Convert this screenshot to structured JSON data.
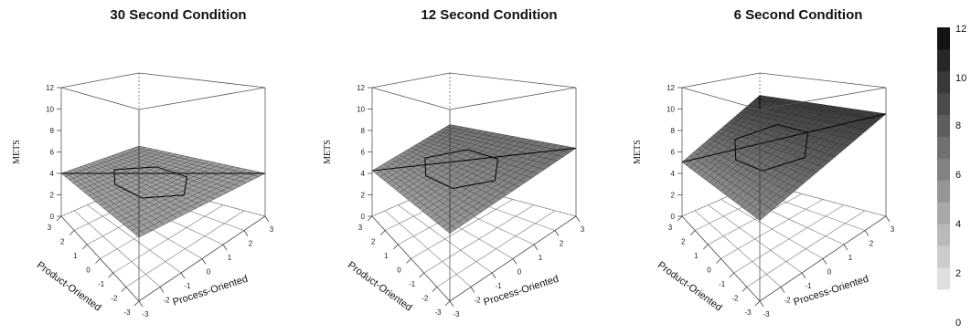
{
  "chart_data": [
    {
      "type": "surface",
      "title": "30 Second Condition",
      "xlabel": "Process-Oriented",
      "ylabel": "Product-Oriented",
      "zlabel": "METS",
      "xlim": [
        -3,
        3
      ],
      "ylim": [
        -3,
        3
      ],
      "zlim": [
        0,
        12
      ],
      "x_ticks": [
        "-3",
        "-2",
        "-1",
        "0",
        "1",
        "2",
        "3"
      ],
      "y_ticks": [
        "-3",
        "-2",
        "-1",
        "0",
        "1",
        "2",
        "3"
      ],
      "z_ticks": [
        "0",
        "2",
        "4",
        "6",
        "8",
        "10",
        "12"
      ],
      "plane": {
        "intercept": 4.0,
        "slope_process": 0.0,
        "slope_product": 0.0
      }
    },
    {
      "type": "surface",
      "title": "12 Second Condition",
      "xlabel": "Process-Oriented",
      "ylabel": "Product-Oriented",
      "zlabel": "METS",
      "xlim": [
        -3,
        3
      ],
      "ylim": [
        -3,
        3
      ],
      "zlim": [
        0,
        12
      ],
      "x_ticks": [
        "-3",
        "-2",
        "-1",
        "0",
        "1",
        "2",
        "3"
      ],
      "y_ticks": [
        "-3",
        "-2",
        "-1",
        "0",
        "1",
        "2",
        "3"
      ],
      "z_ticks": [
        "0",
        "2",
        "4",
        "6",
        "8",
        "10",
        "12"
      ],
      "plane": {
        "intercept": 5.3,
        "slope_process": 0.35,
        "slope_product": 0.0
      }
    },
    {
      "type": "surface",
      "title": "6 Second Condition",
      "xlabel": "Process-Oriented",
      "ylabel": "Product-Oriented",
      "zlabel": "METS",
      "xlim": [
        -3,
        3
      ],
      "ylim": [
        -3,
        3
      ],
      "zlim": [
        0,
        12
      ],
      "x_ticks": [
        "-3",
        "-2",
        "-1",
        "0",
        "1",
        "2",
        "3"
      ],
      "y_ticks": [
        "-3",
        "-2",
        "-1",
        "0",
        "1",
        "2",
        "3"
      ],
      "z_ticks": [
        "0",
        "2",
        "4",
        "6",
        "8",
        "10",
        "12"
      ],
      "plane": {
        "intercept": 7.3,
        "slope_process": 0.75,
        "slope_product": 0.0
      }
    }
  ],
  "colorbar": {
    "ticks": [
      "0",
      "2",
      "4",
      "6",
      "8",
      "10",
      "12"
    ],
    "range": [
      0,
      12
    ],
    "levels": 12,
    "low_color": "#e8e8e8",
    "high_color": "#0b0b0b"
  }
}
